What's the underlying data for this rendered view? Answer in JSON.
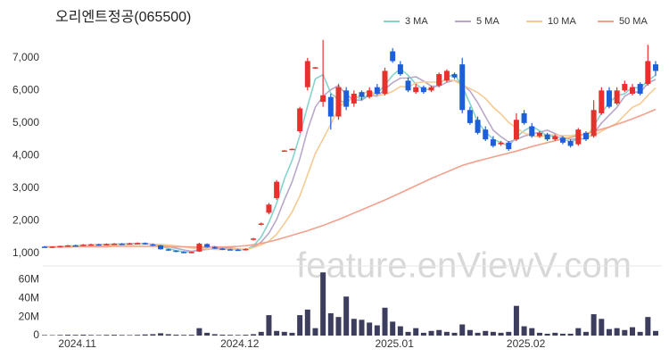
{
  "chart_data": {
    "type": "candlestick",
    "title": "오리엔트정공(065500)",
    "watermark": "feature.enViewV.com",
    "x": [
      null,
      null,
      null,
      null,
      "2024.11",
      null,
      null,
      null,
      null,
      null,
      null,
      null,
      null,
      null,
      null,
      null,
      null,
      null,
      null,
      null,
      null,
      null,
      null,
      null,
      null,
      "2024.12",
      null,
      null,
      null,
      null,
      null,
      null,
      null,
      null,
      null,
      null,
      null,
      null,
      null,
      null,
      null,
      null,
      null,
      null,
      null,
      "2025.01",
      null,
      null,
      null,
      null,
      null,
      null,
      null,
      null,
      null,
      null,
      null,
      null,
      null,
      null,
      null,
      null,
      "2025.02",
      null,
      null,
      null,
      null,
      null,
      null,
      null,
      null,
      null,
      null,
      null,
      null,
      null,
      null,
      null,
      null,
      null
    ],
    "open": [
      1210,
      1200,
      1210,
      1230,
      1250,
      1240,
      1270,
      1280,
      1270,
      1290,
      1300,
      1290,
      1310,
      1320,
      1280,
      1250,
      1130,
      1090,
      1050,
      1030,
      1060,
      1290,
      1200,
      1150,
      1130,
      1120,
      1100,
      1420,
      1880,
      2250,
      2700,
      4150,
      4200,
      4750,
      6100,
      6700,
      5650,
      5800,
      5200,
      6000,
      5600,
      5950,
      5800,
      6100,
      5900,
      7200,
      6800,
      6300,
      5950,
      6100,
      6000,
      6150,
      6300,
      6500,
      6800,
      5400,
      5100,
      4800,
      4500,
      4350,
      4400,
      4500,
      5300,
      4900,
      4600,
      4650,
      4500,
      4550,
      4450,
      4350,
      4700,
      4600,
      5300,
      6000,
      5600,
      6000,
      5900,
      6200,
      6200,
      6800
    ],
    "high": [
      1230,
      1220,
      1240,
      1260,
      1270,
      1290,
      1300,
      1300,
      1310,
      1320,
      1320,
      1330,
      1340,
      1340,
      1300,
      1260,
      1150,
      1100,
      1070,
      1060,
      1330,
      1310,
      1220,
      1170,
      1150,
      1140,
      1160,
      1480,
      1950,
      2550,
      3250,
      4170,
      4220,
      5500,
      7000,
      6720,
      7550,
      5900,
      6200,
      6100,
      6000,
      6000,
      6100,
      6200,
      6700,
      7300,
      6900,
      6400,
      6200,
      6150,
      6150,
      6550,
      6650,
      6550,
      7000,
      5500,
      5200,
      4900,
      4600,
      4450,
      4450,
      5300,
      5400,
      5000,
      4750,
      4700,
      4650,
      4600,
      4500,
      4850,
      4750,
      5700,
      6100,
      6100,
      6100,
      6300,
      6200,
      6250,
      7400,
      6900
    ],
    "low": [
      1190,
      1180,
      1200,
      1210,
      1230,
      1230,
      1250,
      1260,
      1260,
      1270,
      1280,
      1280,
      1290,
      1270,
      1230,
      1120,
      1080,
      1040,
      1020,
      1010,
      1050,
      1180,
      1140,
      1110,
      1100,
      1090,
      1090,
      1400,
      1860,
      2200,
      2650,
      4140,
      4190,
      4700,
      6000,
      6680,
      5500,
      4800,
      5100,
      5400,
      5500,
      5700,
      5750,
      5850,
      5850,
      6850,
      6450,
      5950,
      5900,
      5900,
      5950,
      6100,
      6250,
      6350,
      5300,
      4950,
      4650,
      4450,
      4250,
      4300,
      4150,
      4450,
      4950,
      4550,
      4550,
      4450,
      4450,
      4350,
      4250,
      4300,
      4450,
      4550,
      5250,
      5450,
      5550,
      5950,
      5850,
      5850,
      6150,
      6450
    ],
    "close": [
      1200,
      1210,
      1230,
      1250,
      1240,
      1270,
      1280,
      1270,
      1290,
      1300,
      1290,
      1310,
      1320,
      1280,
      1250,
      1130,
      1090,
      1050,
      1030,
      1050,
      1300,
      1200,
      1150,
      1130,
      1120,
      1100,
      1140,
      1460,
      1920,
      2500,
      3200,
      4160,
      4210,
      5450,
      6900,
      6710,
      5850,
      5200,
      6100,
      5500,
      5900,
      5800,
      6000,
      5900,
      6600,
      6900,
      6500,
      6000,
      6100,
      5950,
      6100,
      6500,
      6600,
      6400,
      5400,
      5000,
      4700,
      4500,
      4300,
      4400,
      4200,
      5100,
      5000,
      4600,
      4700,
      4500,
      4600,
      4400,
      4300,
      4800,
      4500,
      5400,
      6000,
      5500,
      6000,
      6200,
      6100,
      5900,
      6900,
      6600
    ],
    "up_color": "#e8302c",
    "down_color": "#1c5fd8",
    "ylim": [
      700,
      8500
    ],
    "yticks": [
      {
        "value": 1000,
        "label": "1,000"
      },
      {
        "value": 2000,
        "label": "2,000"
      },
      {
        "value": 3000,
        "label": "3,000"
      },
      {
        "value": 4000,
        "label": "4,000"
      },
      {
        "value": 5000,
        "label": "5,000"
      },
      {
        "value": 6000,
        "label": "6,000"
      },
      {
        "value": 7000,
        "label": "7,000"
      }
    ],
    "series": [
      {
        "name": "3 MA",
        "color": "#86d3cc",
        "values": [
          1200,
          1205,
          1213,
          1230,
          1240,
          1253,
          1263,
          1273,
          1280,
          1287,
          1293,
          1300,
          1307,
          1303,
          1283,
          1220,
          1157,
          1090,
          1057,
          1043,
          1127,
          1183,
          1217,
          1160,
          1133,
          1117,
          1120,
          1233,
          1507,
          1960,
          2540,
          3287,
          3857,
          4607,
          5520,
          6353,
          6487,
          5920,
          5717,
          5600,
          5833,
          5733,
          5900,
          5900,
          6167,
          6467,
          6667,
          6467,
          6200,
          6017,
          6050,
          6183,
          6400,
          6500,
          6133,
          5600,
          5033,
          4733,
          4500,
          4400,
          4300,
          4567,
          4767,
          4900,
          4767,
          4600,
          4600,
          4500,
          4433,
          4500,
          4533,
          4900,
          5300,
          5633,
          5833,
          5900,
          6100,
          6067,
          6300,
          6467
        ]
      },
      {
        "name": "5 MA",
        "color": "#b9a7c9",
        "values": [
          1200,
          1205,
          1213,
          1223,
          1226,
          1240,
          1254,
          1262,
          1270,
          1282,
          1286,
          1292,
          1302,
          1300,
          1290,
          1258,
          1214,
          1160,
          1110,
          1070,
          1104,
          1126,
          1146,
          1166,
          1180,
          1140,
          1128,
          1190,
          1348,
          1624,
          2044,
          2648,
          3198,
          3904,
          4784,
          5486,
          5824,
          6022,
          6152,
          5872,
          5710,
          5700,
          5860,
          5820,
          6040,
          6240,
          6380,
          6380,
          6420,
          6290,
          6130,
          6130,
          6250,
          6310,
          6200,
          5980,
          5620,
          5200,
          4780,
          4580,
          4420,
          4500,
          4600,
          4660,
          4720,
          4780,
          4680,
          4560,
          4500,
          4520,
          4520,
          4680,
          5000,
          5240,
          5480,
          5820,
          5960,
          5940,
          6220,
          6340
        ]
      },
      {
        "name": "10 MA",
        "color": "#f4cb93",
        "values": [
          1200,
          1205,
          1213,
          1223,
          1226,
          1235,
          1245,
          1253,
          1261,
          1261,
          1270,
          1277,
          1286,
          1291,
          1288,
          1275,
          1258,
          1230,
          1200,
          1164,
          1159,
          1143,
          1128,
          1118,
          1142,
          1133,
          1137,
          1178,
          1264,
          1382,
          1586,
          1919,
          2273,
          2764,
          3414,
          4067,
          4511,
          4963,
          5468,
          5679,
          5767,
          5861,
          6006,
          5846,
          5875,
          5970,
          6120,
          6100,
          6230,
          6265,
          6255,
          6255,
          6335,
          6300,
          6165,
          6055,
          5935,
          5755,
          5490,
          5280,
          5020,
          4850,
          4690,
          4620,
          4570,
          4640,
          4640,
          4610,
          4610,
          4650,
          4600,
          4620,
          4750,
          4880,
          5000,
          5250,
          5480,
          5590,
          5850,
          6080
        ]
      },
      {
        "name": "50 MA",
        "color": "#f2a18c",
        "values": [
          1200,
          1200,
          1200,
          1200,
          1210,
          1210,
          1210,
          1210,
          1210,
          1220,
          1220,
          1220,
          1220,
          1220,
          1220,
          1220,
          1210,
          1210,
          1210,
          1200,
          1200,
          1200,
          1200,
          1200,
          1210,
          1220,
          1240,
          1270,
          1310,
          1360,
          1420,
          1490,
          1560,
          1630,
          1700,
          1780,
          1860,
          1950,
          2040,
          2140,
          2240,
          2340,
          2440,
          2540,
          2640,
          2750,
          2860,
          2970,
          3080,
          3190,
          3300,
          3400,
          3500,
          3600,
          3700,
          3770,
          3840,
          3900,
          3960,
          4020,
          4080,
          4140,
          4210,
          4280,
          4340,
          4400,
          4460,
          4510,
          4560,
          4620,
          4680,
          4740,
          4810,
          4880,
          4960,
          5040,
          5130,
          5220,
          5320,
          5420
        ]
      }
    ],
    "volume": {
      "color": "#3d3d5e",
      "ylim": [
        0,
        73000000
      ],
      "yticks": [
        0,
        {
          "value": 20000000,
          "label": "20M"
        },
        {
          "value": 40000000,
          "label": "40M"
        },
        {
          "value": 60000000,
          "label": "60M"
        }
      ],
      "values": [
        600000,
        500000,
        700000,
        900000,
        800000,
        1000000,
        700000,
        600000,
        800000,
        900000,
        700000,
        600000,
        800000,
        1200000,
        1500000,
        2500000,
        1500000,
        1000000,
        800000,
        900000,
        8000000,
        3000000,
        1500000,
        1000000,
        800000,
        700000,
        900000,
        1500000,
        4000000,
        22000000,
        5000000,
        4000000,
        3000000,
        22000000,
        28000000,
        8000000,
        68000000,
        24000000,
        20000000,
        42000000,
        18000000,
        17000000,
        14000000,
        11000000,
        30000000,
        15000000,
        10000000,
        4000000,
        8000000,
        3000000,
        5000000,
        6000000,
        4000000,
        3000000,
        12000000,
        6000000,
        3000000,
        5000000,
        4000000,
        3000000,
        4000000,
        32000000,
        10000000,
        8000000,
        3000000,
        2000000,
        3000000,
        2000000,
        2000000,
        8000000,
        4000000,
        23000000,
        18000000,
        7000000,
        8000000,
        6000000,
        9000000,
        4000000,
        20000000,
        5000000
      ]
    }
  }
}
